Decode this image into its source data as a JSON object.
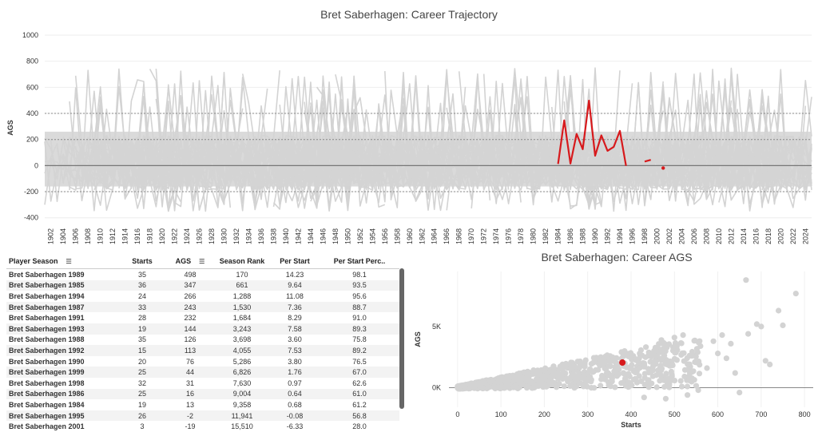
{
  "top_chart": {
    "title": "Bret Saberhagen: Career Trajectory",
    "chart_data": {
      "type": "line",
      "title": "Bret Saberhagen: Career Trajectory",
      "ylabel": "AGS",
      "xlim": [
        1901,
        2025
      ],
      "ylim": [
        -420,
        1000
      ],
      "y_ticks": [
        -400,
        -200,
        0,
        200,
        400,
        600,
        800,
        1000
      ],
      "x_ticks": [
        1902,
        1904,
        1906,
        1908,
        1910,
        1912,
        1914,
        1916,
        1918,
        1920,
        1922,
        1924,
        1926,
        1928,
        1930,
        1932,
        1934,
        1936,
        1938,
        1940,
        1942,
        1944,
        1946,
        1948,
        1950,
        1952,
        1954,
        1956,
        1958,
        1960,
        1962,
        1964,
        1966,
        1968,
        1970,
        1972,
        1974,
        1976,
        1978,
        1980,
        1982,
        1984,
        1986,
        1988,
        1990,
        1992,
        1994,
        1996,
        1998,
        2000,
        2002,
        2004,
        2006,
        2008,
        2010,
        2012,
        2014,
        2016,
        2018,
        2020,
        2022,
        2024
      ],
      "reference_lines": [
        -200,
        200,
        400
      ],
      "highlight_color": "#d7191c",
      "background_color": "#d3d3d3",
      "series": [
        {
          "name": "Bret Saberhagen",
          "x": [
            1984,
            1985,
            1986,
            1987,
            1988,
            1989,
            1990,
            1991,
            1992,
            1993,
            1994,
            1995,
            1996,
            1997,
            1998,
            1999,
            2000,
            2001
          ],
          "y": [
            13,
            347,
            16,
            243,
            126,
            498,
            76,
            232,
            113,
            144,
            266,
            -2,
            null,
            null,
            31,
            44,
            null,
            -19
          ]
        }
      ]
    }
  },
  "table": {
    "columns": [
      "Player Season",
      "Starts",
      "AGS",
      "Season Rank",
      "Per Start",
      "Per Start Perc.."
    ],
    "rows": [
      [
        "Bret Saberhagen 1989",
        "35",
        "498",
        "170",
        "14.23",
        "98.1"
      ],
      [
        "Bret Saberhagen 1985",
        "36",
        "347",
        "661",
        "9.64",
        "93.5"
      ],
      [
        "Bret Saberhagen 1994",
        "24",
        "266",
        "1,288",
        "11.08",
        "95.6"
      ],
      [
        "Bret Saberhagen 1987",
        "33",
        "243",
        "1,530",
        "7.36",
        "88.7"
      ],
      [
        "Bret Saberhagen 1991",
        "28",
        "232",
        "1,684",
        "8.29",
        "91.0"
      ],
      [
        "Bret Saberhagen 1993",
        "19",
        "144",
        "3,243",
        "7.58",
        "89.3"
      ],
      [
        "Bret Saberhagen 1988",
        "35",
        "126",
        "3,698",
        "3.60",
        "75.8"
      ],
      [
        "Bret Saberhagen 1992",
        "15",
        "113",
        "4,055",
        "7.53",
        "89.2"
      ],
      [
        "Bret Saberhagen 1990",
        "20",
        "76",
        "5,286",
        "3.80",
        "76.5"
      ],
      [
        "Bret Saberhagen 1999",
        "25",
        "44",
        "6,826",
        "1.76",
        "67.0"
      ],
      [
        "Bret Saberhagen 1998",
        "32",
        "31",
        "7,630",
        "0.97",
        "62.6"
      ],
      [
        "Bret Saberhagen 1986",
        "25",
        "16",
        "9,004",
        "0.64",
        "61.0"
      ],
      [
        "Bret Saberhagen 1984",
        "19",
        "13",
        "9,358",
        "0.68",
        "61.2"
      ],
      [
        "Bret Saberhagen 1995",
        "26",
        "-2",
        "11,941",
        "-0.08",
        "56.8"
      ],
      [
        "Bret Saberhagen 2001",
        "3",
        "-19",
        "15,510",
        "-6.33",
        "28.0"
      ]
    ]
  },
  "bottom_chart": {
    "title": "Bret Saberhagen: Career AGS",
    "chart_data": {
      "type": "scatter",
      "title": "Bret Saberhagen: Career AGS",
      "xlabel": "Starts",
      "ylabel": "AGS",
      "xlim": [
        -20,
        820
      ],
      "ylim": [
        -1600,
        9500
      ],
      "x_ticks": [
        0,
        100,
        200,
        300,
        400,
        500,
        600,
        700,
        800
      ],
      "y_ticks": [
        {
          "value": 0,
          "label": "0K"
        },
        {
          "value": 5000,
          "label": "5K"
        }
      ],
      "highlight": {
        "name": "Bret Saberhagen",
        "x": 380,
        "y": 2055,
        "color": "#d7191c"
      },
      "point_color": "#d3d3d3"
    }
  }
}
